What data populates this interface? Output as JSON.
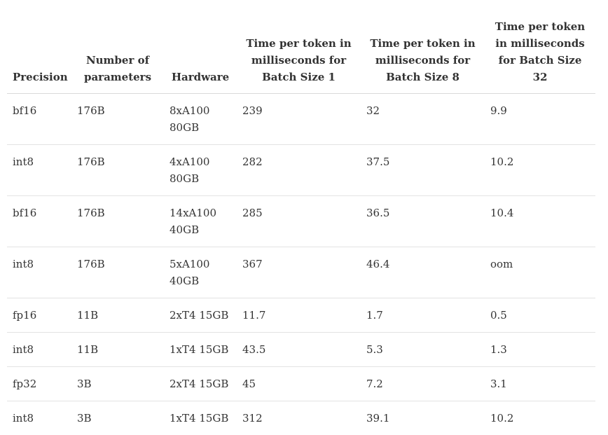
{
  "table": {
    "headers": [
      "Precision",
      "Number of parameters",
      "Hardware",
      "Time per token in milliseconds for Batch Size 1",
      "Time per token in milliseconds for Batch Size 8",
      "Time per token in milliseconds for Batch Size 32"
    ],
    "rows": [
      [
        "bf16",
        "176B",
        "8xA100 80GB",
        "239",
        "32",
        "9.9"
      ],
      [
        "int8",
        "176B",
        "4xA100 80GB",
        "282",
        "37.5",
        "10.2"
      ],
      [
        "bf16",
        "176B",
        "14xA100 40GB",
        "285",
        "36.5",
        "10.4"
      ],
      [
        "int8",
        "176B",
        "5xA100 40GB",
        "367",
        "46.4",
        "oom"
      ],
      [
        "fp16",
        "11B",
        "2xT4 15GB",
        "11.7",
        "1.7",
        "0.5"
      ],
      [
        "int8",
        "11B",
        "1xT4 15GB",
        "43.5",
        "5.3",
        "1.3"
      ],
      [
        "fp32",
        "3B",
        "2xT4 15GB",
        "45",
        "7.2",
        "3.1"
      ],
      [
        "int8",
        "3B",
        "1xT4 15GB",
        "312",
        "39.1",
        "10.2"
      ]
    ]
  }
}
